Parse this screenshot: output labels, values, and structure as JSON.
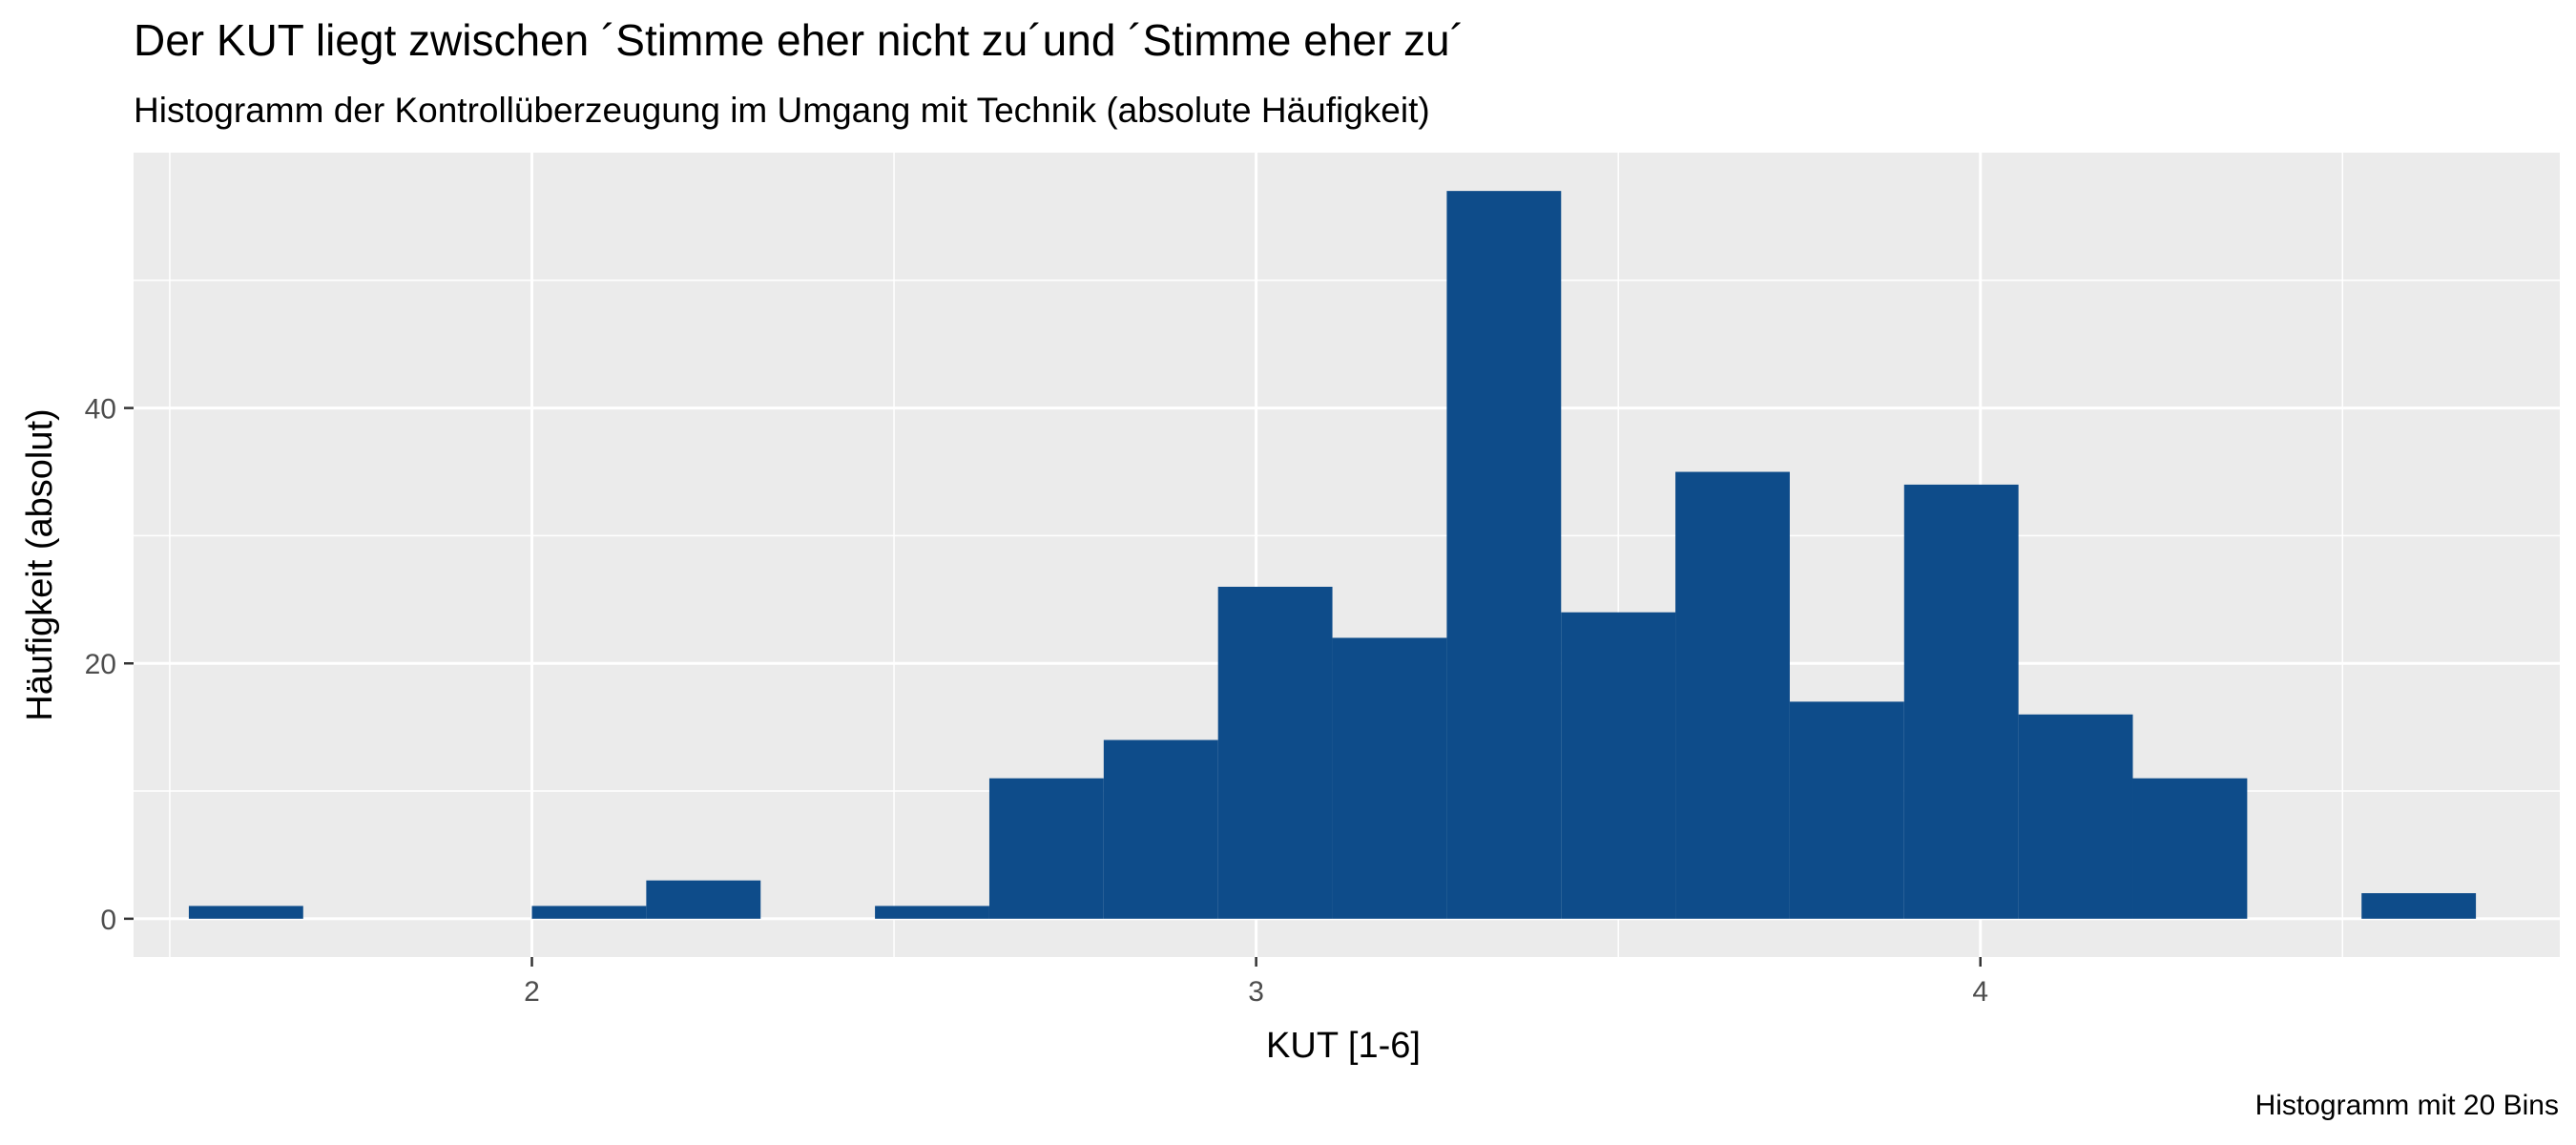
{
  "chart_data": {
    "type": "bar",
    "title": "Der KUT liegt zwischen ´Stimme eher nicht zu´und ´Stimme eher zu´",
    "subtitle": "Histogramm der Kontrollüberzeugung im Umgang mit Technik (absolute Häufigkeit)",
    "xlabel": "KUT [1-6]",
    "ylabel": "Häufigkeit (absolut)",
    "caption": "Histogramm mit 20 Bins",
    "xlim": [
      1.45,
      4.8
    ],
    "ylim": [
      -3,
      60
    ],
    "x_ticks": [
      2,
      3,
      4
    ],
    "y_ticks": [
      0,
      20,
      40
    ],
    "grid": true,
    "bar_color": "#0e4c8a",
    "panel_color": "#ebebeb",
    "grid_color": "#ffffff",
    "bin_width": 0.1579,
    "bins": [
      {
        "x0": 1.5263,
        "x1": 1.6842,
        "count": 1
      },
      {
        "x0": 1.6842,
        "x1": 1.8421,
        "count": 0
      },
      {
        "x0": 1.8421,
        "x1": 2.0,
        "count": 0
      },
      {
        "x0": 2.0,
        "x1": 2.1579,
        "count": 1
      },
      {
        "x0": 2.1579,
        "x1": 2.3158,
        "count": 3
      },
      {
        "x0": 2.3158,
        "x1": 2.4737,
        "count": 0
      },
      {
        "x0": 2.4737,
        "x1": 2.6316,
        "count": 1
      },
      {
        "x0": 2.6316,
        "x1": 2.7895,
        "count": 11
      },
      {
        "x0": 2.7895,
        "x1": 2.9474,
        "count": 14
      },
      {
        "x0": 2.9474,
        "x1": 3.1053,
        "count": 26
      },
      {
        "x0": 3.1053,
        "x1": 3.2632,
        "count": 22
      },
      {
        "x0": 3.2632,
        "x1": 3.4211,
        "count": 57
      },
      {
        "x0": 3.4211,
        "x1": 3.5789,
        "count": 24
      },
      {
        "x0": 3.5789,
        "x1": 3.7368,
        "count": 35
      },
      {
        "x0": 3.7368,
        "x1": 3.8947,
        "count": 17
      },
      {
        "x0": 3.8947,
        "x1": 4.0526,
        "count": 34
      },
      {
        "x0": 4.0526,
        "x1": 4.2105,
        "count": 16
      },
      {
        "x0": 4.2105,
        "x1": 4.3684,
        "count": 11
      },
      {
        "x0": 4.3684,
        "x1": 4.5263,
        "count": 0
      },
      {
        "x0": 4.5263,
        "x1": 4.6842,
        "count": 2
      }
    ]
  }
}
